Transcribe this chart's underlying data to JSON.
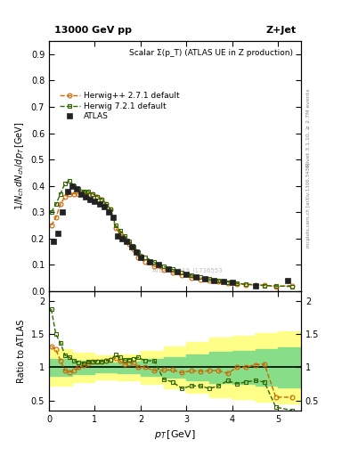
{
  "title_left": "13000 GeV pp",
  "title_right": "Z+Jet",
  "inner_title": "Scalar Σ(p_T) (ATLAS UE in Z production)",
  "right_label": "Rivet 3.1.10, ≥ 2.7M events",
  "right_label2": "mcplots.cern.ch [arXiv:1306.3436]",
  "watermark": "ATLAS_2019_I1736553",
  "atlas_x": [
    0.1,
    0.2,
    0.3,
    0.4,
    0.5,
    0.6,
    0.7,
    0.8,
    0.9,
    1.0,
    1.1,
    1.2,
    1.3,
    1.4,
    1.5,
    1.6,
    1.7,
    1.8,
    1.9,
    2.0,
    2.2,
    2.4,
    2.6,
    2.8,
    3.0,
    3.2,
    3.4,
    3.6,
    3.8,
    4.0,
    4.5,
    5.2
  ],
  "atlas_y": [
    0.19,
    0.22,
    0.3,
    0.38,
    0.4,
    0.39,
    0.37,
    0.36,
    0.35,
    0.34,
    0.33,
    0.32,
    0.3,
    0.28,
    0.21,
    0.2,
    0.19,
    0.17,
    0.15,
    0.13,
    0.11,
    0.1,
    0.085,
    0.075,
    0.065,
    0.055,
    0.048,
    0.042,
    0.038,
    0.033,
    0.022,
    0.04
  ],
  "herwig_pp_x": [
    0.05,
    0.15,
    0.25,
    0.35,
    0.45,
    0.55,
    0.65,
    0.75,
    0.85,
    0.95,
    1.05,
    1.15,
    1.25,
    1.35,
    1.45,
    1.55,
    1.65,
    1.75,
    1.85,
    1.95,
    2.1,
    2.3,
    2.5,
    2.7,
    2.9,
    3.1,
    3.3,
    3.5,
    3.7,
    3.9,
    4.1,
    4.3,
    4.5,
    4.7,
    4.95,
    5.3
  ],
  "herwig_pp_y": [
    0.25,
    0.28,
    0.33,
    0.36,
    0.37,
    0.37,
    0.37,
    0.37,
    0.37,
    0.37,
    0.36,
    0.35,
    0.33,
    0.31,
    0.24,
    0.22,
    0.2,
    0.18,
    0.16,
    0.13,
    0.11,
    0.095,
    0.082,
    0.072,
    0.06,
    0.052,
    0.045,
    0.04,
    0.036,
    0.03,
    0.028,
    0.025,
    0.024,
    0.023,
    0.018,
    0.022
  ],
  "herwig72_x": [
    0.05,
    0.15,
    0.25,
    0.35,
    0.45,
    0.55,
    0.65,
    0.75,
    0.85,
    0.95,
    1.05,
    1.15,
    1.25,
    1.35,
    1.45,
    1.55,
    1.65,
    1.75,
    1.85,
    1.95,
    2.1,
    2.3,
    2.5,
    2.7,
    2.9,
    3.1,
    3.3,
    3.5,
    3.7,
    3.9,
    4.1,
    4.3,
    4.5,
    4.7,
    4.95,
    5.3
  ],
  "herwig72_y": [
    0.3,
    0.33,
    0.37,
    0.41,
    0.42,
    0.4,
    0.39,
    0.38,
    0.38,
    0.37,
    0.36,
    0.35,
    0.33,
    0.31,
    0.25,
    0.23,
    0.21,
    0.19,
    0.17,
    0.15,
    0.13,
    0.11,
    0.095,
    0.083,
    0.072,
    0.062,
    0.053,
    0.046,
    0.04,
    0.035,
    0.03,
    0.027,
    0.025,
    0.022,
    0.02,
    0.018
  ],
  "ratio_pp_x": [
    0.05,
    0.15,
    0.25,
    0.35,
    0.45,
    0.55,
    0.65,
    0.75,
    0.85,
    0.95,
    1.05,
    1.15,
    1.25,
    1.35,
    1.45,
    1.55,
    1.65,
    1.75,
    1.85,
    1.95,
    2.1,
    2.3,
    2.5,
    2.7,
    2.9,
    3.1,
    3.3,
    3.5,
    3.7,
    3.9,
    4.1,
    4.3,
    4.5,
    4.7,
    4.95,
    5.3
  ],
  "ratio_pp_y": [
    1.32,
    1.27,
    1.1,
    0.95,
    0.93,
    0.95,
    1.0,
    1.03,
    1.06,
    1.09,
    1.09,
    1.09,
    1.1,
    1.11,
    1.14,
    1.1,
    1.05,
    1.06,
    1.07,
    1.0,
    1.0,
    0.95,
    0.96,
    0.96,
    0.92,
    0.95,
    0.94,
    0.95,
    0.95,
    0.91,
    1.0,
    1.0,
    1.04,
    1.05,
    0.55,
    0.55
  ],
  "ratio_72_x": [
    0.05,
    0.15,
    0.25,
    0.35,
    0.45,
    0.55,
    0.65,
    0.75,
    0.85,
    0.95,
    1.05,
    1.15,
    1.25,
    1.35,
    1.45,
    1.55,
    1.65,
    1.75,
    1.85,
    1.95,
    2.1,
    2.3,
    2.5,
    2.7,
    2.9,
    3.1,
    3.3,
    3.5,
    3.7,
    3.9,
    4.1,
    4.3,
    4.5,
    4.7,
    4.95,
    5.3
  ],
  "ratio_72_y": [
    1.88,
    1.5,
    1.37,
    1.18,
    1.15,
    1.1,
    1.08,
    1.06,
    1.09,
    1.09,
    1.09,
    1.09,
    1.1,
    1.11,
    1.19,
    1.15,
    1.11,
    1.12,
    1.13,
    1.15,
    1.1,
    1.1,
    0.82,
    0.78,
    0.68,
    0.72,
    0.72,
    0.68,
    0.72,
    0.8,
    0.75,
    0.78,
    0.8,
    0.78,
    0.4,
    0.35
  ],
  "band_yellow_edges": [
    0.0,
    0.5,
    1.0,
    1.5,
    2.0,
    2.5,
    3.0,
    3.5,
    4.0,
    4.5,
    5.0,
    5.5
  ],
  "band_yellow_low": [
    0.72,
    0.78,
    0.82,
    0.8,
    0.75,
    0.68,
    0.62,
    0.55,
    0.52,
    0.48,
    0.45,
    0.45
  ],
  "band_yellow_high": [
    1.28,
    1.22,
    1.18,
    1.2,
    1.25,
    1.32,
    1.38,
    1.45,
    1.48,
    1.52,
    1.55,
    1.55
  ],
  "band_green_edges": [
    0.0,
    0.5,
    1.0,
    1.5,
    2.0,
    2.5,
    3.0,
    3.5,
    4.0,
    4.5,
    5.0,
    5.5
  ],
  "band_green_low": [
    0.87,
    0.9,
    0.92,
    0.91,
    0.87,
    0.84,
    0.8,
    0.77,
    0.75,
    0.72,
    0.7,
    0.7
  ],
  "band_green_high": [
    1.13,
    1.1,
    1.08,
    1.09,
    1.13,
    1.16,
    1.2,
    1.23,
    1.25,
    1.28,
    1.3,
    1.3
  ],
  "xlim": [
    0.0,
    5.5
  ],
  "ylim_main": [
    0.0,
    0.95
  ],
  "ylim_ratio": [
    0.35,
    2.15
  ],
  "yticks_main": [
    0.0,
    0.1,
    0.2,
    0.3,
    0.4,
    0.5,
    0.6,
    0.7,
    0.8,
    0.9
  ],
  "yticks_ratio": [
    0.5,
    1.0,
    1.5,
    2.0
  ],
  "xticks": [
    0,
    1,
    2,
    3,
    4,
    5
  ],
  "color_atlas": "#222222",
  "color_herwig_pp": "#cc6600",
  "color_herwig72": "#336600",
  "color_yellow": "#ffff88",
  "color_green": "#88dd88"
}
